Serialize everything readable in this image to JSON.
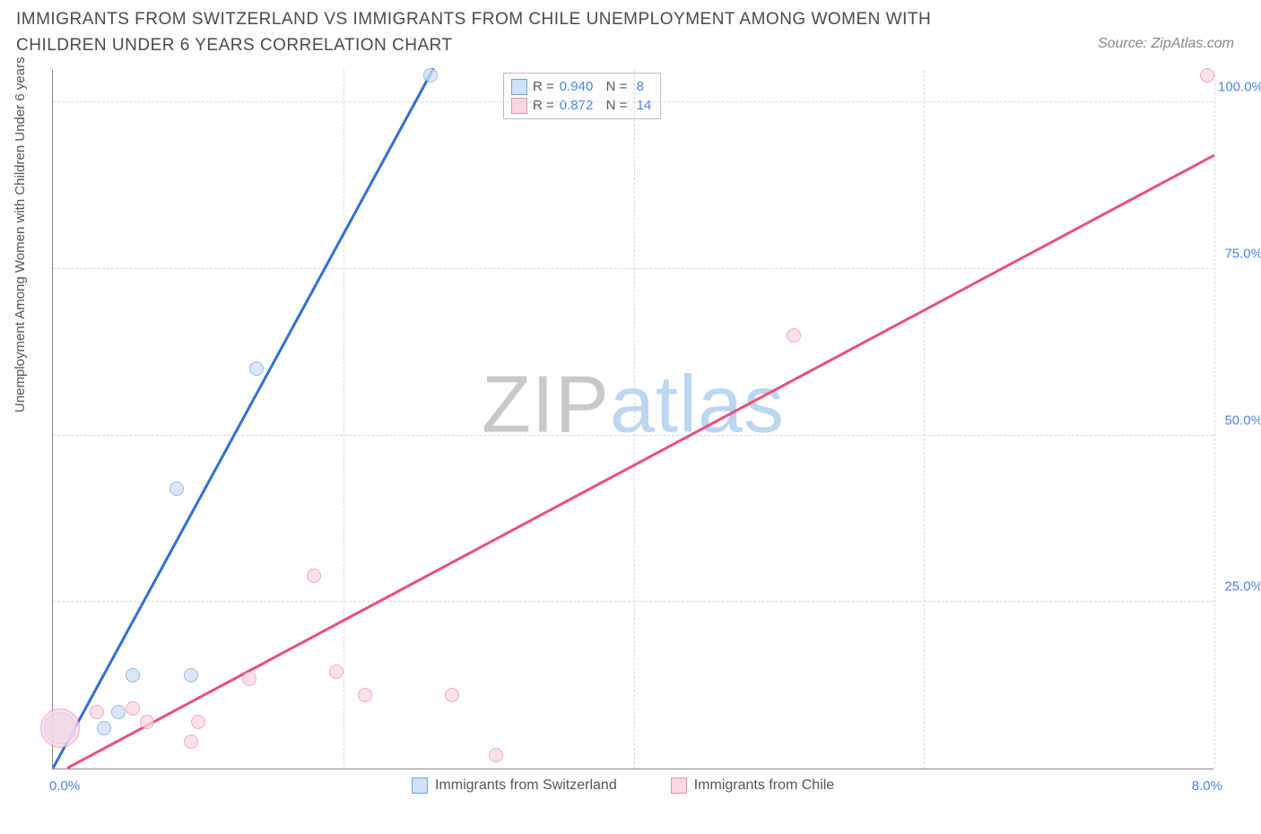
{
  "title": "IMMIGRANTS FROM SWITZERLAND VS IMMIGRANTS FROM CHILE UNEMPLOYMENT AMONG WOMEN WITH CHILDREN UNDER 6 YEARS CORRELATION CHART",
  "source": "Source: ZipAtlas.com",
  "y_axis_label": "Unemployment Among Women with Children Under 6 years",
  "watermark_a": "ZIP",
  "watermark_b": "atlas",
  "chart": {
    "type": "scatter",
    "xlim": [
      0.0,
      8.0
    ],
    "ylim": [
      0.0,
      105.0
    ],
    "xticks": [
      {
        "v": 0.0,
        "label": "0.0%"
      },
      {
        "v": 8.0,
        "label": "8.0%"
      }
    ],
    "yticks": [
      {
        "v": 25.0,
        "label": "25.0%"
      },
      {
        "v": 50.0,
        "label": "50.0%"
      },
      {
        "v": 75.0,
        "label": "75.0%"
      },
      {
        "v": 100.0,
        "label": "100.0%"
      }
    ],
    "vgrid": [
      2.0,
      4.0,
      6.0,
      8.0
    ],
    "background_color": "#ffffff",
    "grid_color": "#d8d8d8",
    "series": [
      {
        "name": "Immigrants from Switzerland",
        "color_fill": "#cfe0f7",
        "color_stroke": "#6fa3e0",
        "line_color": "#2f6fd0",
        "R": "0.940",
        "N": "8",
        "trend": {
          "x1": 0.0,
          "y1": 0.0,
          "x2": 2.62,
          "y2": 105.0
        },
        "points": [
          {
            "x": 0.05,
            "y": 6.0,
            "r": 18
          },
          {
            "x": 0.35,
            "y": 6.0,
            "r": 8
          },
          {
            "x": 0.45,
            "y": 8.5,
            "r": 8
          },
          {
            "x": 0.55,
            "y": 14.0,
            "r": 8
          },
          {
            "x": 0.95,
            "y": 14.0,
            "r": 8
          },
          {
            "x": 0.85,
            "y": 42.0,
            "r": 8
          },
          {
            "x": 1.4,
            "y": 60.0,
            "r": 8
          },
          {
            "x": 2.6,
            "y": 104.0,
            "r": 8
          }
        ]
      },
      {
        "name": "Immigrants from Chile",
        "color_fill": "#f9d8e2",
        "color_stroke": "#e88fae",
        "line_color": "#e84f7d",
        "R": "0.872",
        "N": "14",
        "trend": {
          "x1": 0.1,
          "y1": 0.0,
          "x2": 8.0,
          "y2": 92.0
        },
        "points": [
          {
            "x": 0.05,
            "y": 6.0,
            "r": 22
          },
          {
            "x": 0.3,
            "y": 8.5,
            "r": 8
          },
          {
            "x": 0.55,
            "y": 9.0,
            "r": 8
          },
          {
            "x": 0.65,
            "y": 7.0,
            "r": 8
          },
          {
            "x": 0.95,
            "y": 4.0,
            "r": 8
          },
          {
            "x": 1.0,
            "y": 7.0,
            "r": 8
          },
          {
            "x": 1.35,
            "y": 13.5,
            "r": 8
          },
          {
            "x": 1.8,
            "y": 29.0,
            "r": 8
          },
          {
            "x": 1.95,
            "y": 14.5,
            "r": 8
          },
          {
            "x": 2.15,
            "y": 11.0,
            "r": 8
          },
          {
            "x": 2.75,
            "y": 11.0,
            "r": 8
          },
          {
            "x": 3.05,
            "y": 2.0,
            "r": 8
          },
          {
            "x": 5.1,
            "y": 65.0,
            "r": 8
          },
          {
            "x": 7.95,
            "y": 104.0,
            "r": 8
          }
        ]
      }
    ],
    "bottom_legend": [
      {
        "label": "Immigrants from Switzerland",
        "fill": "#cfe0f7",
        "stroke": "#6fa3e0"
      },
      {
        "label": "Immigrants from Chile",
        "fill": "#f9d8e2",
        "stroke": "#e88fae"
      }
    ]
  }
}
